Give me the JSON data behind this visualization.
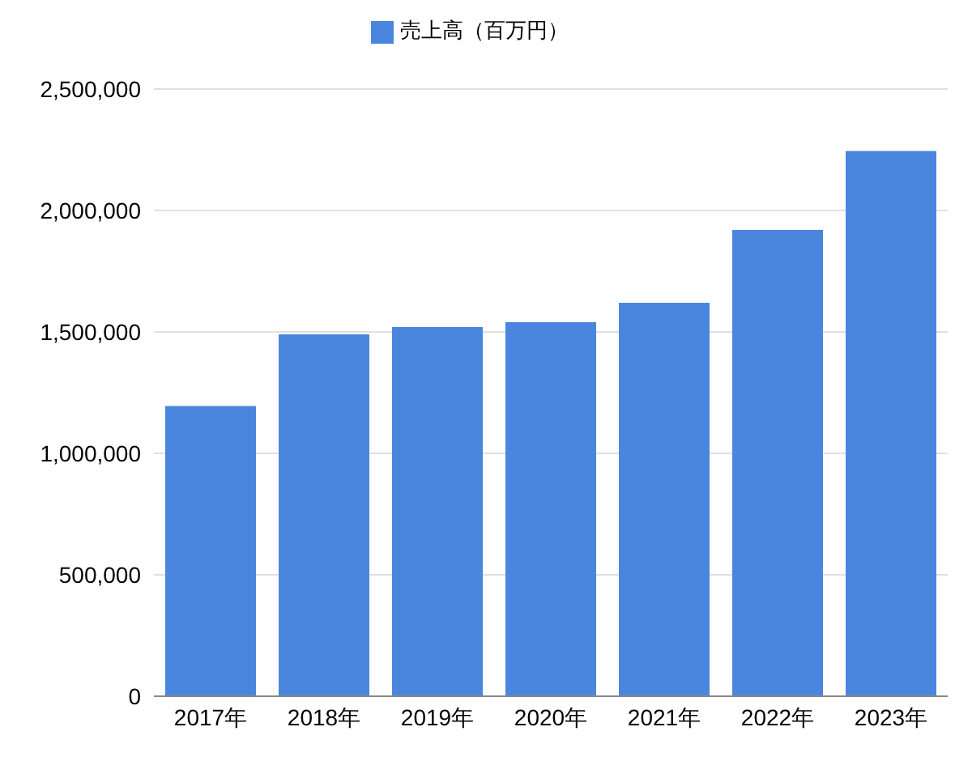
{
  "chart_data": {
    "type": "bar",
    "categories": [
      "2017年",
      "2018年",
      "2019年",
      "2020年",
      "2021年",
      "2022年",
      "2023年"
    ],
    "series": [
      {
        "name": "売上高（百万円）",
        "color": "#4a86de",
        "values": [
          1195000,
          1490000,
          1520000,
          1540000,
          1620000,
          1920000,
          2245000
        ]
      }
    ],
    "ylim": [
      0,
      2500000
    ],
    "yticks": [
      0,
      {
        "value": 500000,
        "label": "500,000"
      },
      {
        "value": 1000000,
        "label": "1,000,000"
      },
      {
        "value": 1500000,
        "label": "1,500,000"
      },
      {
        "value": 2000000,
        "label": "2,000,000"
      },
      {
        "value": 2500000,
        "label": "2,500,000"
      }
    ],
    "grid": "y",
    "legend": "top"
  }
}
